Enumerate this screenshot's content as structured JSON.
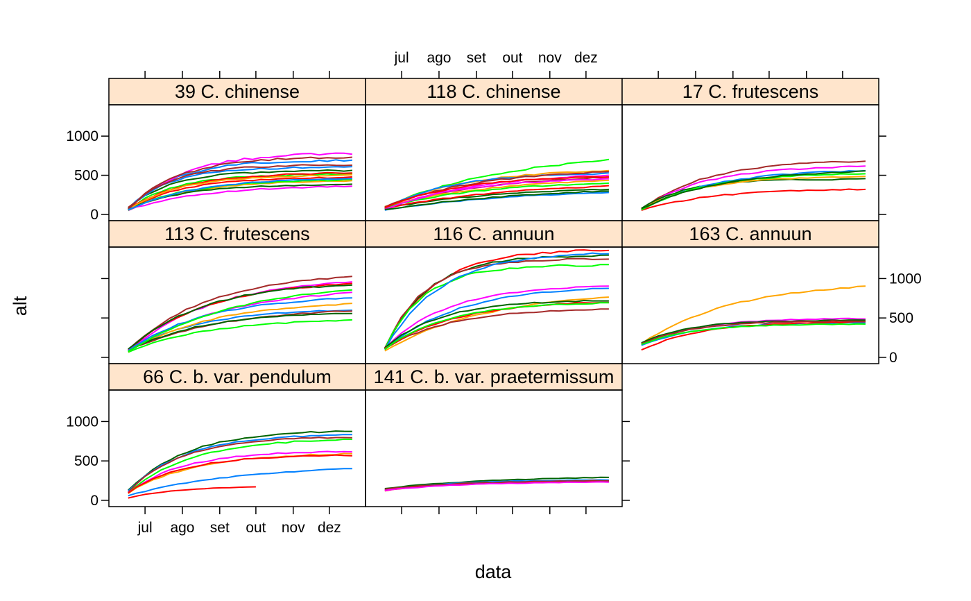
{
  "chart_data": {
    "type": "line",
    "xlabel": "data",
    "ylabel": "alt",
    "x_tick_labels": [
      "jul",
      "ago",
      "set",
      "out",
      "nov",
      "dez"
    ],
    "xlim": [
      "2014-06-01",
      "2014-12-31"
    ],
    "y_tick_labels": [
      "0",
      "500",
      "1000"
    ],
    "ylim": [
      -80,
      1400
    ],
    "layout": "3 columns x 3 rows (lattice), 8 panels",
    "strip_color": "#ffe5cc",
    "series_colors": [
      "#0080ff",
      "#ff00ff",
      "#006400",
      "#ff0000",
      "#ffa500",
      "#00ff00",
      "#a52a2a"
    ],
    "panels": [
      {
        "label": "39 C. chinense",
        "x_start": "2014-06-17",
        "x_end": "2014-12-20",
        "series": [
          {
            "color": "#0080ff",
            "start": 70,
            "plateau": 690,
            "speed": 4.6,
            "noise": 25
          },
          {
            "color": "#ff00ff",
            "start": 60,
            "plateau": 780,
            "speed": 4.0,
            "noise": 30
          },
          {
            "color": "#006400",
            "start": 80,
            "plateau": 560,
            "speed": 5.0,
            "noise": 20
          },
          {
            "color": "#ff0000",
            "start": 55,
            "plateau": 470,
            "speed": 4.2,
            "noise": 15
          },
          {
            "color": "#ffa500",
            "start": 65,
            "plateau": 430,
            "speed": 3.4,
            "noise": 15
          },
          {
            "color": "#00ff00",
            "start": 60,
            "plateau": 510,
            "speed": 4.8,
            "noise": 18
          },
          {
            "color": "#a52a2a",
            "start": 75,
            "plateau": 730,
            "speed": 4.4,
            "noise": 25
          },
          {
            "color": "#0080ff",
            "start": 60,
            "plateau": 600,
            "speed": 5.4,
            "noise": 20
          },
          {
            "color": "#ff00ff",
            "start": 55,
            "plateau": 360,
            "speed": 3.0,
            "noise": 15
          },
          {
            "color": "#006400",
            "start": 65,
            "plateau": 380,
            "speed": 4.0,
            "noise": 12
          },
          {
            "color": "#ff0000",
            "start": 70,
            "plateau": 530,
            "speed": 3.8,
            "noise": 18
          },
          {
            "color": "#ffa500",
            "start": 60,
            "plateau": 500,
            "speed": 4.4,
            "noise": 15
          },
          {
            "color": "#a52a2a",
            "start": 65,
            "plateau": 630,
            "speed": 5.2,
            "noise": 22
          },
          {
            "color": "#00ff00",
            "start": 55,
            "plateau": 440,
            "speed": 3.6,
            "noise": 15
          },
          {
            "color": "#0080ff",
            "start": 60,
            "plateau": 460,
            "speed": 3.2,
            "noise": 15
          }
        ]
      },
      {
        "label": "118 C. chinense",
        "x_start": "2014-06-17",
        "x_end": "2014-12-20",
        "series": [
          {
            "color": "#00ff00",
            "start": 90,
            "plateau": 690,
            "speed": 1.8,
            "noise": 20
          },
          {
            "color": "#ffa500",
            "start": 95,
            "plateau": 560,
            "speed": 2.6,
            "noise": 15
          },
          {
            "color": "#0080ff",
            "start": 70,
            "plateau": 520,
            "speed": 3.4,
            "noise": 20
          },
          {
            "color": "#ff00ff",
            "start": 60,
            "plateau": 500,
            "speed": 2.4,
            "noise": 15
          },
          {
            "color": "#a52a2a",
            "start": 80,
            "plateau": 470,
            "speed": 2.2,
            "noise": 15
          },
          {
            "color": "#006400",
            "start": 75,
            "plateau": 320,
            "speed": 2.0,
            "noise": 12
          },
          {
            "color": "#ff0000",
            "start": 70,
            "plateau": 360,
            "speed": 1.8,
            "noise": 15
          },
          {
            "color": "#0080ff",
            "start": 55,
            "plateau": 280,
            "speed": 1.6,
            "noise": 12
          },
          {
            "color": "#ffa500",
            "start": 100,
            "plateau": 430,
            "speed": 2.0,
            "noise": 15
          },
          {
            "color": "#00ff00",
            "start": 85,
            "plateau": 400,
            "speed": 2.2,
            "noise": 15
          },
          {
            "color": "#ff00ff",
            "start": 65,
            "plateau": 450,
            "speed": 2.8,
            "noise": 15
          },
          {
            "color": "#006400",
            "start": 60,
            "plateau": 300,
            "speed": 1.4,
            "noise": 12
          },
          {
            "color": "#a52a2a",
            "start": 90,
            "plateau": 540,
            "speed": 2.4,
            "noise": 18
          },
          {
            "color": "#ff0000",
            "start": 80,
            "plateau": 480,
            "speed": 3.0,
            "noise": 15
          }
        ]
      },
      {
        "label": "17 C. frutescens",
        "x_start": "2014-06-17",
        "x_end": "2014-12-20",
        "series": [
          {
            "color": "#a52a2a",
            "start": 70,
            "plateau": 680,
            "speed": 3.4,
            "noise": 18
          },
          {
            "color": "#ff00ff",
            "start": 60,
            "plateau": 610,
            "speed": 3.6,
            "noise": 18
          },
          {
            "color": "#ff0000",
            "start": 50,
            "plateau": 320,
            "speed": 3.2,
            "noise": 15
          },
          {
            "color": "#006400",
            "start": 75,
            "plateau": 450,
            "speed": 5.0,
            "noise": 15
          },
          {
            "color": "#0080ff",
            "start": 60,
            "plateau": 560,
            "speed": 3.0,
            "noise": 18
          },
          {
            "color": "#ffa500",
            "start": 65,
            "plateau": 480,
            "speed": 3.8,
            "noise": 15
          },
          {
            "color": "#00ff00",
            "start": 55,
            "plateau": 520,
            "speed": 3.4,
            "noise": 15
          },
          {
            "color": "#006400",
            "start": 70,
            "plateau": 550,
            "speed": 2.8,
            "noise": 15
          }
        ]
      },
      {
        "label": "113 C. frutescens",
        "x_start": "2014-06-17",
        "x_end": "2014-12-20",
        "series": [
          {
            "color": "#a52a2a",
            "start": 90,
            "plateau": 1020,
            "speed": 2.8,
            "noise": 20
          },
          {
            "color": "#ff00ff",
            "start": 80,
            "plateau": 960,
            "speed": 2.6,
            "noise": 20
          },
          {
            "color": "#ff0000",
            "start": 85,
            "plateau": 930,
            "speed": 2.9,
            "noise": 20
          },
          {
            "color": "#006400",
            "start": 95,
            "plateau": 920,
            "speed": 3.0,
            "noise": 20
          },
          {
            "color": "#00ff00",
            "start": 70,
            "plateau": 470,
            "speed": 2.8,
            "noise": 15
          },
          {
            "color": "#0080ff",
            "start": 80,
            "plateau": 600,
            "speed": 3.2,
            "noise": 15
          },
          {
            "color": "#ffa500",
            "start": 75,
            "plateau": 680,
            "speed": 2.6,
            "noise": 15
          },
          {
            "color": "#a52a2a",
            "start": 85,
            "plateau": 590,
            "speed": 2.4,
            "noise": 15
          },
          {
            "color": "#ff00ff",
            "start": 90,
            "plateau": 820,
            "speed": 2.2,
            "noise": 18
          },
          {
            "color": "#006400",
            "start": 80,
            "plateau": 560,
            "speed": 3.0,
            "noise": 15
          },
          {
            "color": "#0080ff",
            "start": 85,
            "plateau": 750,
            "speed": 2.8,
            "noise": 18
          },
          {
            "color": "#00ff00",
            "start": 75,
            "plateau": 860,
            "speed": 2.0,
            "noise": 18
          }
        ]
      },
      {
        "label": "116 C. annuun",
        "x_start": "2014-06-17",
        "x_end": "2014-12-20",
        "series": [
          {
            "color": "#ff0000",
            "start": 120,
            "plateau": 1360,
            "speed": 4.6,
            "noise": 25
          },
          {
            "color": "#006400",
            "start": 110,
            "plateau": 1290,
            "speed": 5.2,
            "noise": 22
          },
          {
            "color": "#a52a2a",
            "start": 120,
            "plateau": 1250,
            "speed": 5.6,
            "noise": 22
          },
          {
            "color": "#00ff00",
            "start": 110,
            "plateau": 1170,
            "speed": 5.6,
            "noise": 25
          },
          {
            "color": "#0080ff",
            "start": 100,
            "plateau": 1320,
            "speed": 4.0,
            "noise": 25
          },
          {
            "color": "#ff00ff",
            "start": 110,
            "plateau": 900,
            "speed": 3.6,
            "noise": 18
          },
          {
            "color": "#0080ff",
            "start": 100,
            "plateau": 880,
            "speed": 3.0,
            "noise": 18
          },
          {
            "color": "#ffa500",
            "start": 80,
            "plateau": 760,
            "speed": 2.2,
            "noise": 18
          },
          {
            "color": "#006400",
            "start": 120,
            "plateau": 720,
            "speed": 4.0,
            "noise": 15
          },
          {
            "color": "#a52a2a",
            "start": 110,
            "plateau": 610,
            "speed": 3.4,
            "noise": 15
          },
          {
            "color": "#ff0000",
            "start": 105,
            "plateau": 700,
            "speed": 3.2,
            "noise": 15
          },
          {
            "color": "#00ff00",
            "start": 95,
            "plateau": 690,
            "speed": 3.6,
            "noise": 15
          }
        ]
      },
      {
        "label": "163 C. annuun",
        "x_start": "2014-06-17",
        "x_end": "2014-12-20",
        "series": [
          {
            "color": "#ffa500",
            "start": 170,
            "plateau": 900,
            "speed": 2.4,
            "noise": 18
          },
          {
            "color": "#ff00ff",
            "start": 160,
            "plateau": 490,
            "speed": 4.2,
            "noise": 12
          },
          {
            "color": "#006400",
            "start": 180,
            "plateau": 470,
            "speed": 4.8,
            "noise": 12
          },
          {
            "color": "#0080ff",
            "start": 150,
            "plateau": 440,
            "speed": 4.0,
            "noise": 12
          },
          {
            "color": "#ff0000",
            "start": 90,
            "plateau": 450,
            "speed": 3.8,
            "noise": 12
          },
          {
            "color": "#a52a2a",
            "start": 170,
            "plateau": 460,
            "speed": 4.4,
            "noise": 12
          },
          {
            "color": "#00ff00",
            "start": 160,
            "plateau": 420,
            "speed": 4.6,
            "noise": 10
          }
        ]
      },
      {
        "label": "66 C. b. var. pendulum",
        "x_start": "2014-06-17",
        "x_end": "2014-12-20",
        "series": [
          {
            "color": "#006400",
            "start": 120,
            "plateau": 880,
            "speed": 3.8,
            "noise": 18
          },
          {
            "color": "#0080ff",
            "start": 110,
            "plateau": 830,
            "speed": 4.0,
            "noise": 18
          },
          {
            "color": "#a52a2a",
            "start": 110,
            "plateau": 800,
            "speed": 4.2,
            "noise": 18
          },
          {
            "color": "#00ff00",
            "start": 100,
            "plateau": 770,
            "speed": 3.6,
            "noise": 18
          },
          {
            "color": "#ff00ff",
            "start": 100,
            "plateau": 620,
            "speed": 4.0,
            "noise": 15
          },
          {
            "color": "#ffa500",
            "start": 90,
            "plateau": 590,
            "speed": 3.4,
            "noise": 15
          },
          {
            "color": "#ff0000",
            "start": 95,
            "plateau": 570,
            "speed": 4.0,
            "noise": 15
          },
          {
            "color": "#0080ff",
            "start": 60,
            "plateau": 400,
            "speed": 2.0,
            "noise": 12
          },
          {
            "color": "#ff0000",
            "start": 30,
            "plateau": 180,
            "speed": 4.4,
            "noise": 6,
            "x_end": "2014-10-01"
          }
        ]
      },
      {
        "label": "141 C. b. var. praetermissum",
        "x_start": "2014-06-17",
        "x_end": "2014-12-20",
        "series": [
          {
            "color": "#006400",
            "start": 150,
            "plateau": 290,
            "speed": 2.0,
            "noise": 8
          },
          {
            "color": "#0080ff",
            "start": 130,
            "plateau": 260,
            "speed": 3.0,
            "noise": 8
          },
          {
            "color": "#ff0000",
            "start": 120,
            "plateau": 240,
            "speed": 3.2,
            "noise": 8
          },
          {
            "color": "#a52a2a",
            "start": 140,
            "plateau": 250,
            "speed": 2.8,
            "noise": 8
          },
          {
            "color": "#ff00ff",
            "start": 125,
            "plateau": 230,
            "speed": 3.0,
            "noise": 8
          }
        ]
      }
    ]
  }
}
